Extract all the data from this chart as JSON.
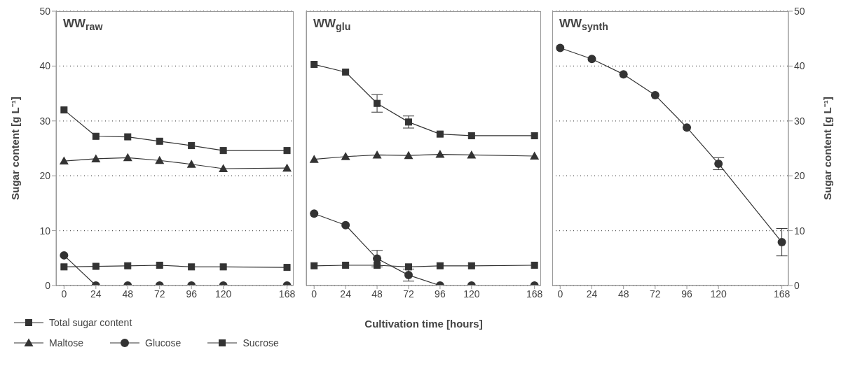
{
  "chart_data": [
    {
      "type": "line",
      "title": "WW$_{raw}$",
      "ylabel": "Sugar content [g L⁻¹]",
      "x": [
        0,
        24,
        48,
        72,
        96,
        120,
        168
      ],
      "xlim": [
        -6,
        173
      ],
      "xticks": [
        0,
        24,
        48,
        72,
        96,
        120,
        168
      ],
      "ylim": [
        0,
        50
      ],
      "yticks": [
        0,
        10,
        20,
        30,
        40,
        50
      ],
      "grid": "y",
      "legend": "bottom left",
      "series": [
        {
          "name": "Total sugar content",
          "color": "#333333",
          "marker": "square",
          "values": [
            32.0,
            27.2,
            27.1,
            26.3,
            25.5,
            24.6,
            24.6
          ]
        },
        {
          "name": "Maltose",
          "color": "#333333",
          "marker": "triangle",
          "values": [
            22.7,
            23.1,
            23.3,
            22.8,
            22.1,
            21.3,
            21.4
          ]
        },
        {
          "name": "Glucose",
          "color": "#333333",
          "marker": "circle",
          "values": [
            5.5,
            0,
            0,
            0,
            0,
            0,
            0
          ]
        },
        {
          "name": "Sucrose",
          "color": "#333333",
          "marker": "square",
          "values": [
            3.4,
            3.5,
            3.6,
            3.7,
            3.4,
            3.4,
            3.3
          ]
        }
      ]
    },
    {
      "type": "line",
      "title": "WW$_{glu}$",
      "xlabel": "Cultivation time [hours]",
      "x": [
        0,
        24,
        48,
        72,
        96,
        120,
        168
      ],
      "xlim": [
        -6,
        173
      ],
      "xticks": [
        0,
        24,
        48,
        72,
        96,
        120,
        168
      ],
      "ylim": [
        0,
        50
      ],
      "yticks": [
        0,
        10,
        20,
        30,
        40,
        50
      ],
      "tick_labels": "x",
      "grid": "y",
      "series": [
        {
          "color": "#333333",
          "marker": "square",
          "values": [
            40.3,
            38.9,
            33.2,
            29.8,
            27.6,
            27.3,
            27.3
          ],
          "errors": [
            null,
            null,
            1.6,
            1.1,
            null,
            null,
            null
          ]
        },
        {
          "color": "#333333",
          "marker": "triangle",
          "values": [
            23.0,
            23.5,
            23.8,
            23.7,
            23.9,
            23.8,
            23.6
          ]
        },
        {
          "color": "#333333",
          "marker": "circle",
          "values": [
            13.1,
            11.0,
            4.9,
            1.9,
            0,
            0,
            0
          ],
          "errors": [
            null,
            null,
            1.5,
            1.1,
            null,
            null,
            null
          ]
        },
        {
          "color": "#333333",
          "marker": "square",
          "values": [
            3.6,
            3.7,
            3.7,
            3.4,
            3.6,
            3.6,
            3.7
          ]
        }
      ]
    },
    {
      "type": "line",
      "title": "WW$_{synth}$",
      "y2label": "Sugar content [g L⁻¹]",
      "x": [
        0,
        24,
        48,
        72,
        96,
        120,
        168
      ],
      "xlim": [
        -6,
        173
      ],
      "xticks": [
        0,
        24,
        48,
        72,
        96,
        120,
        168
      ],
      "y2lim": [
        0,
        50
      ],
      "y2ticks": [
        0,
        10,
        20,
        30,
        40,
        50
      ],
      "grid": "y",
      "series": [
        {
          "color": "#333333",
          "marker": "circle",
          "axis": "y2",
          "values": [
            43.3,
            41.3,
            38.5,
            34.7,
            28.8,
            22.2,
            7.9
          ],
          "errors": [
            null,
            null,
            null,
            null,
            null,
            1.1,
            2.5
          ]
        }
      ]
    }
  ]
}
